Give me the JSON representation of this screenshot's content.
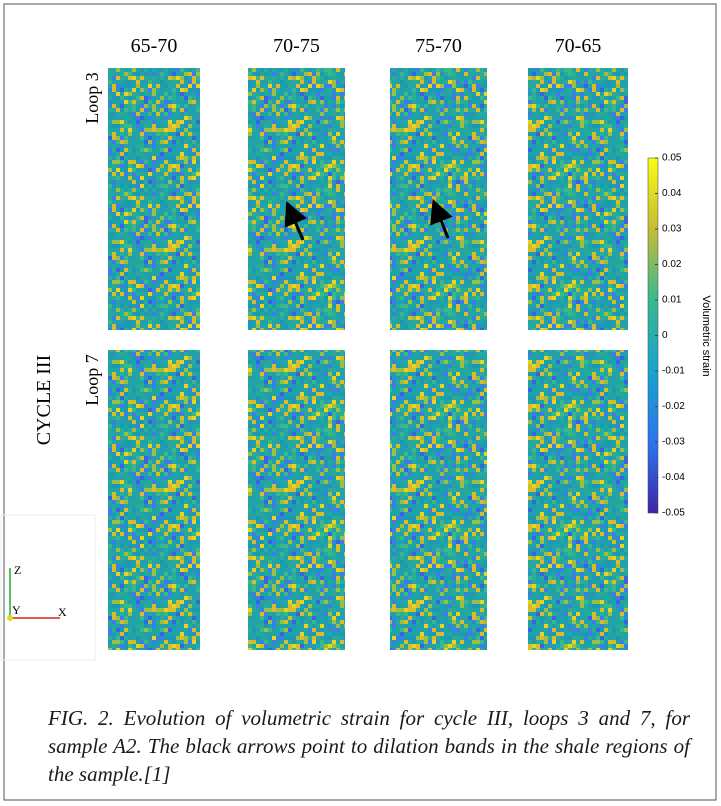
{
  "columns": [
    "65-70",
    "70-75",
    "75-70",
    "70-65"
  ],
  "rows": [
    "Loop 3",
    "Loop 7"
  ],
  "cycle_label": "CYCLE III",
  "colorbar": {
    "label": "Volumetric strain",
    "lim": [
      -0.05,
      0.05
    ],
    "ticks": [
      0.05,
      0.04,
      0.03,
      0.02,
      0.01,
      0,
      -0.01,
      -0.02,
      -0.03,
      -0.04,
      -0.05
    ]
  },
  "axes_triad": {
    "z": "Z",
    "y": "Y",
    "x": "X"
  },
  "caption": "FIG. 2. Evolution of volumetric strain for cycle III, loops 3 and 7, for sample A2. The black arrows point to dilation bands in the shale regions of the sample.[1]"
}
